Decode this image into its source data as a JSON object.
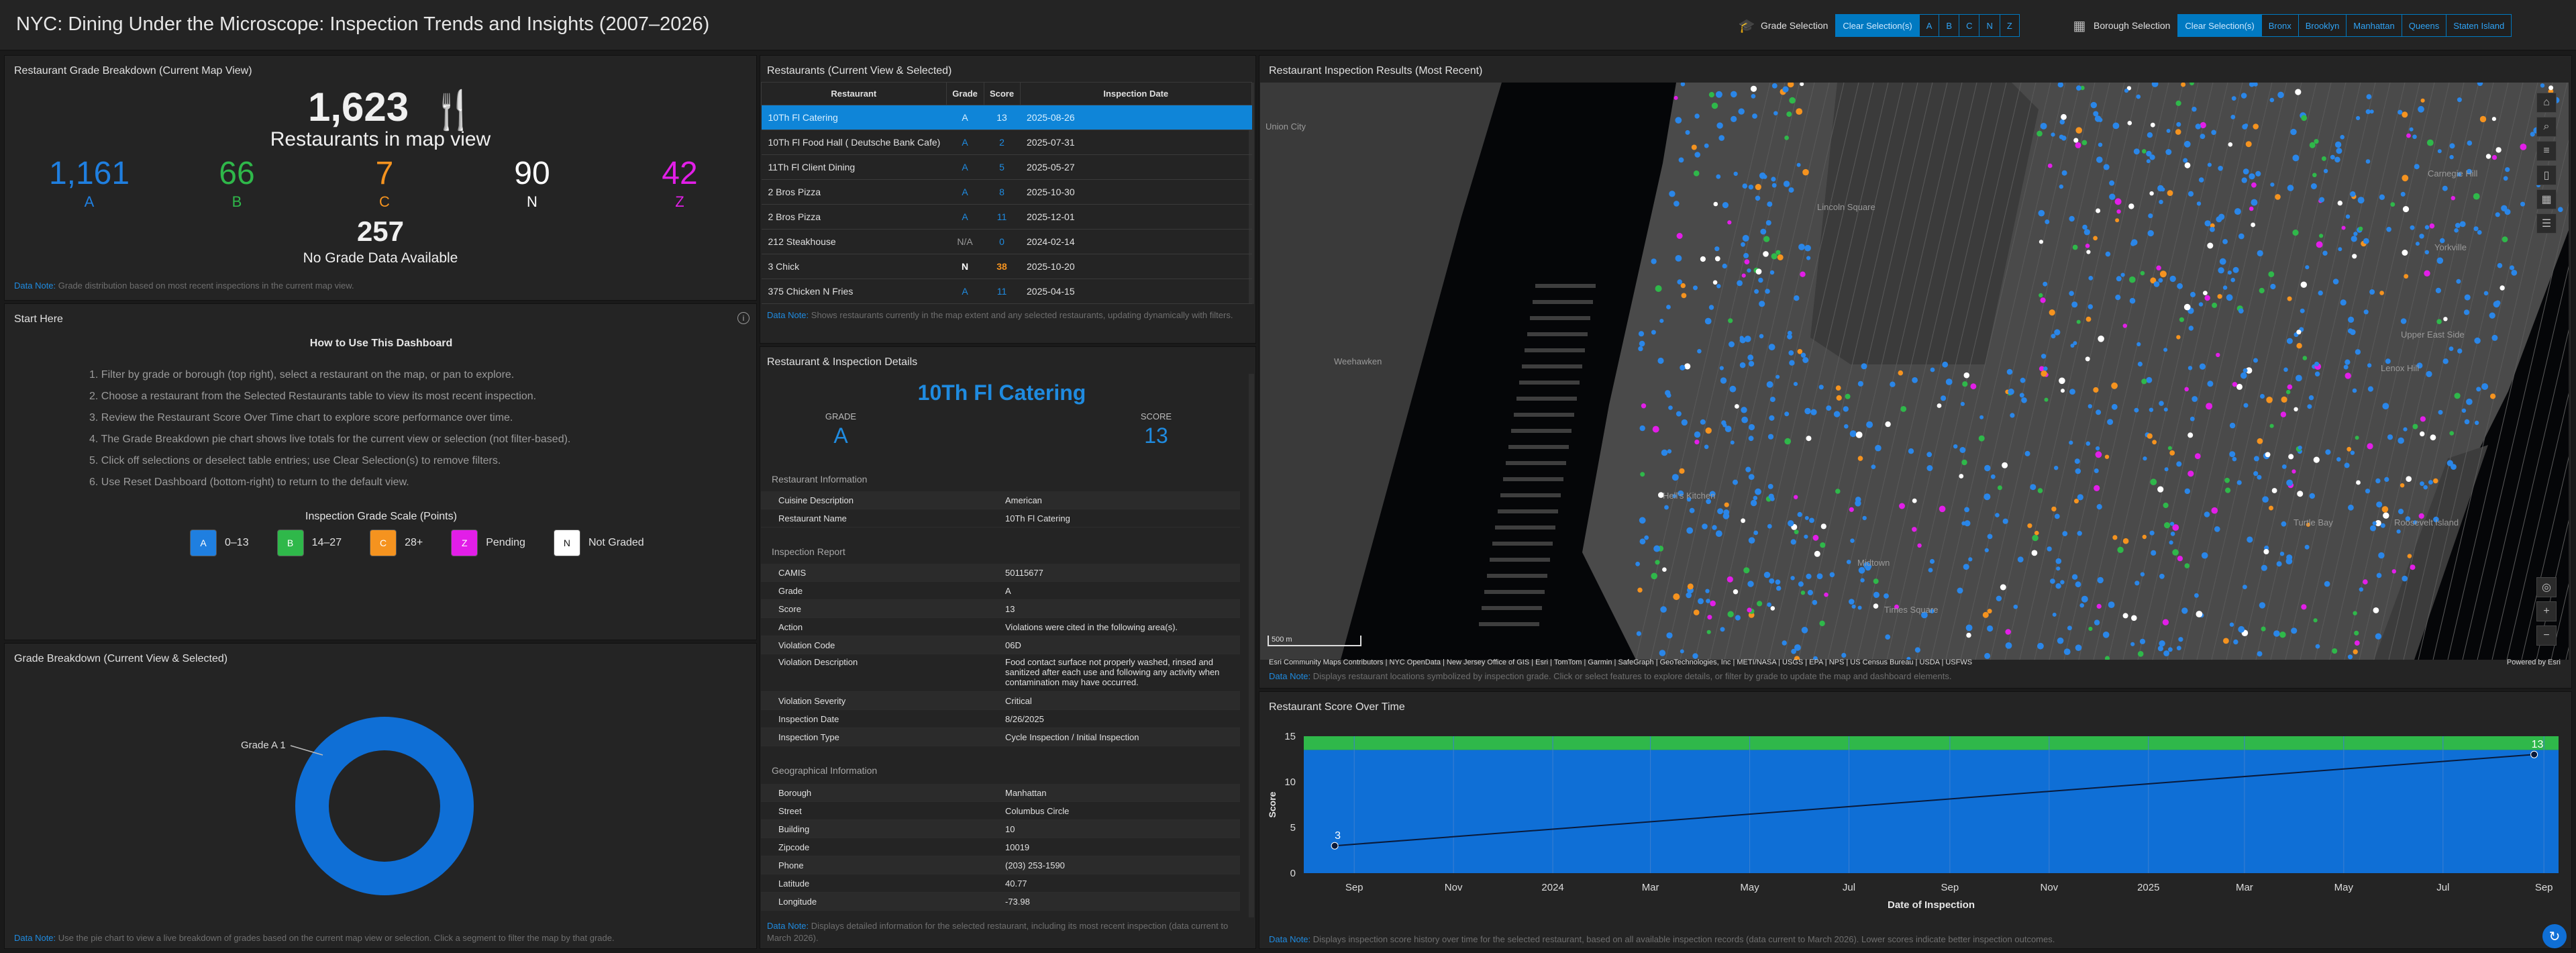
{
  "header": {
    "title": "NYC: Dining Under the Microscope: Inspection Trends and Insights (2007–2026)",
    "grade_selection": {
      "label": "Grade Selection",
      "icon": "graduation-cap-icon",
      "clear": "Clear Selection(s)",
      "options": [
        "A",
        "B",
        "C",
        "N",
        "Z"
      ]
    },
    "borough_selection": {
      "label": "Borough Selection",
      "icon": "building-icon",
      "clear": "Clear Selection(s)",
      "options": [
        "Bronx",
        "Brooklyn",
        "Manhattan",
        "Queens",
        "Staten Island"
      ]
    }
  },
  "breakdown": {
    "title": "Restaurant Grade Breakdown (Current Map View)",
    "total": "1,623",
    "total_label": "Restaurants in map view",
    "grades": [
      {
        "value": "1,161",
        "label": "A",
        "color": "#1f7fe0"
      },
      {
        "value": "66",
        "label": "B",
        "color": "#2fb84a"
      },
      {
        "value": "7",
        "label": "C",
        "color": "#f5931f"
      },
      {
        "value": "90",
        "label": "N",
        "color": "#ffffff"
      },
      {
        "value": "42",
        "label": "Z",
        "color": "#e21ee8"
      }
    ],
    "nodata_value": "257",
    "nodata_label": "No Grade Data Available",
    "note_label": "Data Note:",
    "note": "Grade distribution based on most recent inspections in the current map view."
  },
  "start": {
    "title": "Start Here",
    "info_icon": "info-icon",
    "heading": "How to Use This Dashboard",
    "steps": [
      "1. Filter by grade or borough (top right), select a restaurant on the map, or pan to explore.",
      "2. Choose a restaurant from the Selected Restaurants table to view its most recent inspection.",
      "3. Review the Restaurant Score Over Time chart to explore score performance over time.",
      "4. The Grade Breakdown pie chart shows live totals for the current view or selection (not filter-based).",
      "5. Click off selections or deselect table entries; use Clear Selection(s) to remove filters.",
      "6. Use Reset Dashboard (bottom-right) to return to the default view."
    ],
    "scale_title": "Inspection Grade Scale (Points)",
    "scale": [
      {
        "chip": "A",
        "text": "0–13",
        "bg": "#1f7fe0",
        "fg": "#ffffff"
      },
      {
        "chip": "B",
        "text": "14–27",
        "bg": "#2fb84a",
        "fg": "#ffffff"
      },
      {
        "chip": "C",
        "text": "28+",
        "bg": "#f5931f",
        "fg": "#ffffff"
      },
      {
        "chip": "Z",
        "text": "Pending",
        "bg": "#e21ee8",
        "fg": "#ffffff"
      },
      {
        "chip": "N",
        "text": "Not Graded",
        "bg": "#ffffff",
        "fg": "#111111"
      }
    ]
  },
  "pie": {
    "title": "Grade Breakdown (Current View & Selected)",
    "slice_label": "Grade A 1",
    "note_label": "Data Note:",
    "note": "Use the pie chart to view a live breakdown of grades based on the current map view or selection. Click a segment to filter the map by that grade."
  },
  "restaurants": {
    "title": "Restaurants (Current View & Selected)",
    "columns": [
      "Restaurant",
      "Grade",
      "Score",
      "Inspection Date"
    ],
    "rows": [
      {
        "name": "10Th Fl Catering",
        "grade": "A",
        "score": "13",
        "date": "2025-08-26",
        "selected": true
      },
      {
        "name": "10Th Fl Food Hall ( Deutsche Bank Cafe)",
        "grade": "A",
        "score": "2",
        "date": "2025-07-31"
      },
      {
        "name": "11Th Fl Client Dining",
        "grade": "A",
        "score": "5",
        "date": "2025-05-27"
      },
      {
        "name": "2 Bros Pizza",
        "grade": "A",
        "score": "8",
        "date": "2025-10-30"
      },
      {
        "name": "2 Bros Pizza",
        "grade": "A",
        "score": "11",
        "date": "2025-12-01"
      },
      {
        "name": "212 Steakhouse",
        "grade": "N/A",
        "score": "0",
        "date": "2024-02-14"
      },
      {
        "name": "3 Chick",
        "grade": "N",
        "score": "38",
        "date": "2025-10-20"
      },
      {
        "name": "375 Chicken N Fries",
        "grade": "A",
        "score": "11",
        "date": "2025-04-15"
      }
    ],
    "note_label": "Data Note:",
    "note": "Shows restaurants currently in the map extent and any selected restaurants, updating dynamically with filters."
  },
  "details": {
    "title": "Restaurant & Inspection Details",
    "name": "10Th Fl Catering",
    "grade_label": "GRADE",
    "grade": "A",
    "score_label": "SCORE",
    "score": "13",
    "info_title": "Restaurant Information",
    "info": [
      [
        "Cuisine Description",
        "American"
      ],
      [
        "Restaurant Name",
        "10Th Fl Catering"
      ]
    ],
    "report_title": "Inspection Report",
    "report": [
      [
        "CAMIS",
        "50115677"
      ],
      [
        "Grade",
        "A"
      ],
      [
        "Score",
        "13"
      ],
      [
        "Action",
        "Violations were cited in the following area(s)."
      ],
      [
        "Violation Code",
        "06D"
      ],
      [
        "Violation Description",
        "Food contact surface not properly washed, rinsed and sanitized after each use and following any activity when contamination may have occurred."
      ],
      [
        "Violation Severity",
        "Critical"
      ],
      [
        "Inspection Date",
        "8/26/2025"
      ],
      [
        "Inspection Type",
        "Cycle Inspection / Initial Inspection"
      ]
    ],
    "geo_title": "Geographical Information",
    "geo": [
      [
        "Borough",
        "Manhattan"
      ],
      [
        "Street",
        "Columbus Circle"
      ],
      [
        "Building",
        "10"
      ],
      [
        "Zipcode",
        "10019"
      ],
      [
        "Phone",
        "(203) 253-1590"
      ],
      [
        "Latitude",
        "40.77"
      ],
      [
        "Longitude",
        "-73.98"
      ]
    ],
    "note_label": "Data Note:",
    "note": "Displays detailed information for the selected restaurant, including its most recent inspection (data current to March 2026)."
  },
  "map": {
    "title": "Restaurant Inspection Results (Most Recent)",
    "labels": [
      "Union City",
      "Weehawken",
      "Lincoln Square",
      "Hell's Kitchen",
      "Midtown",
      "Upper East Side",
      "Yorkville",
      "Lenox Hill",
      "Roosevelt Island",
      "Turtle Bay",
      "Times Square",
      "Carnegie Hill"
    ],
    "scale": "500 m",
    "attribution": "Esri Community Maps Contributors | NYC OpenData | New Jersey Office of GIS | Esri | TomTom | Garmin | SafeGraph | GeoTechnologies, Inc | METI/NASA | USGS | EPA | NPS | US Census Bureau | USDA | USFWS",
    "powered": "Powered by Esri",
    "note_label": "Data Note:",
    "note": "Displays restaurant locations symbolized by inspection grade. Click or select features to explore details, or filter by grade to update the map and dashboard elements.",
    "tools": [
      "home-icon",
      "search-icon",
      "layers-icon",
      "bookmark-icon",
      "basemap-icon",
      "legend-icon"
    ]
  },
  "score_chart": {
    "title": "Restaurant Score Over Time",
    "note_label": "Data Note:",
    "note": "Displays inspection score history over time for the selected restaurant, based on all available inspection records (data current to March 2026). Lower scores indicate better inspection outcomes.",
    "reset_icon": "reset-icon"
  },
  "chart_data": [
    {
      "type": "line",
      "title": "Restaurant Score Over Time",
      "xlabel": "Date of Inspection",
      "ylabel": "Score",
      "ylim": [
        0,
        15
      ],
      "yticks": [
        0,
        5,
        10,
        15
      ],
      "xticks": [
        "Sep",
        "Nov",
        "2024",
        "Mar",
        "May",
        "Jul",
        "Sep",
        "Nov",
        "2025",
        "Mar",
        "May",
        "Jul",
        "Sep"
      ],
      "points": [
        {
          "x": "2023-08-20",
          "y": 3
        },
        {
          "x": "2025-08-26",
          "y": 13
        }
      ],
      "bands": [
        {
          "from": 0,
          "to": 13.5,
          "color": "#0f6fd6"
        },
        {
          "from": 13.5,
          "to": 15,
          "color": "#2fb84a"
        }
      ],
      "data_labels": [
        "3",
        "13"
      ]
    },
    {
      "type": "pie",
      "title": "Grade Breakdown (Current View & Selected)",
      "categories": [
        "Grade A"
      ],
      "values": [
        1
      ]
    }
  ]
}
